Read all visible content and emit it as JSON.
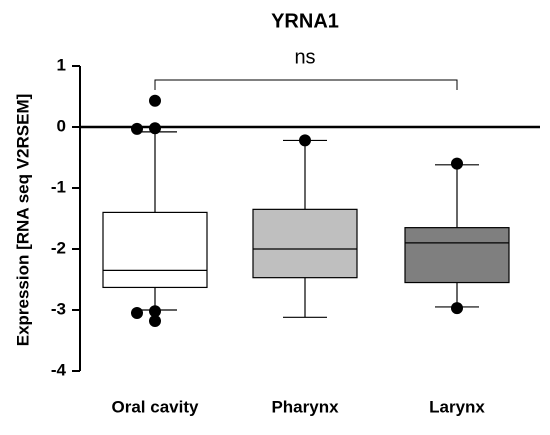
{
  "chart_data": {
    "type": "box",
    "title": "YRNA1",
    "y_label": "Expression [RNA seq V2RSEM]",
    "categories": [
      "Oral cavity",
      "Pharynx",
      "Larynx"
    ],
    "boxes": [
      {
        "whisker_low": -3.0,
        "q1": -2.63,
        "median": -2.35,
        "q3": -1.4,
        "whisker_high": -0.08,
        "outliers": [
          0.43,
          -0.02,
          -0.03,
          -3.02,
          -3.18,
          -3.05
        ],
        "color": "#ffffff"
      },
      {
        "whisker_low": -3.12,
        "q1": -2.47,
        "median": -2.0,
        "q3": -1.35,
        "whisker_high": -0.22,
        "outliers": [
          -0.22
        ],
        "color": "#bfbfbf"
      },
      {
        "whisker_low": -2.95,
        "q1": -2.55,
        "median": -1.9,
        "q3": -1.65,
        "whisker_high": -0.62,
        "outliers": [
          -0.6,
          -2.97
        ],
        "color": "#7f7f7f"
      }
    ],
    "annotation": "ns",
    "reference_line": 0,
    "ylim": [
      -4,
      1
    ],
    "yticks": [
      -4,
      -3,
      -2,
      -1,
      0,
      1
    ]
  }
}
